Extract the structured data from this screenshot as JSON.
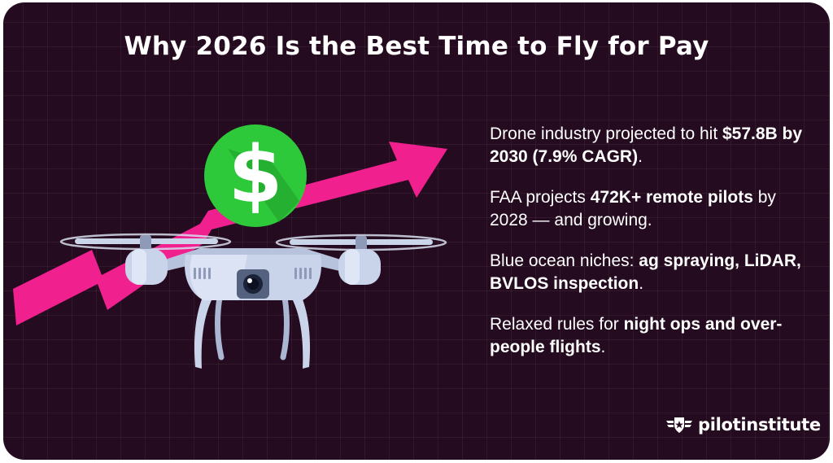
{
  "title": "Why 2026 Is the Best Time to Fly for Pay",
  "points": [
    {
      "text": "Drone industry projected to hit ",
      "bold": "$57.8B by 2030 (7.9% CAGR)",
      "after": "."
    },
    {
      "text": "FAA projects ",
      "bold": "472K+ remote pilots",
      "after": " by 2028 — and growing."
    },
    {
      "text": "Blue ocean niches: ",
      "bold": "ag spraying, LiDAR, BVLOS inspection",
      "after": "."
    },
    {
      "text": "Relaxed rules for ",
      "bold": "night ops and over-people flights",
      "after": "."
    }
  ],
  "coin_symbol": "$",
  "brand": {
    "name": "pilotinstitute",
    "icon": "winged-star-shield-icon"
  },
  "colors": {
    "background": "#250b1f",
    "arrow": "#f0208f",
    "coin": "#2ec93a",
    "drone_body": "#c9d4ea",
    "text": "#ffffff"
  }
}
